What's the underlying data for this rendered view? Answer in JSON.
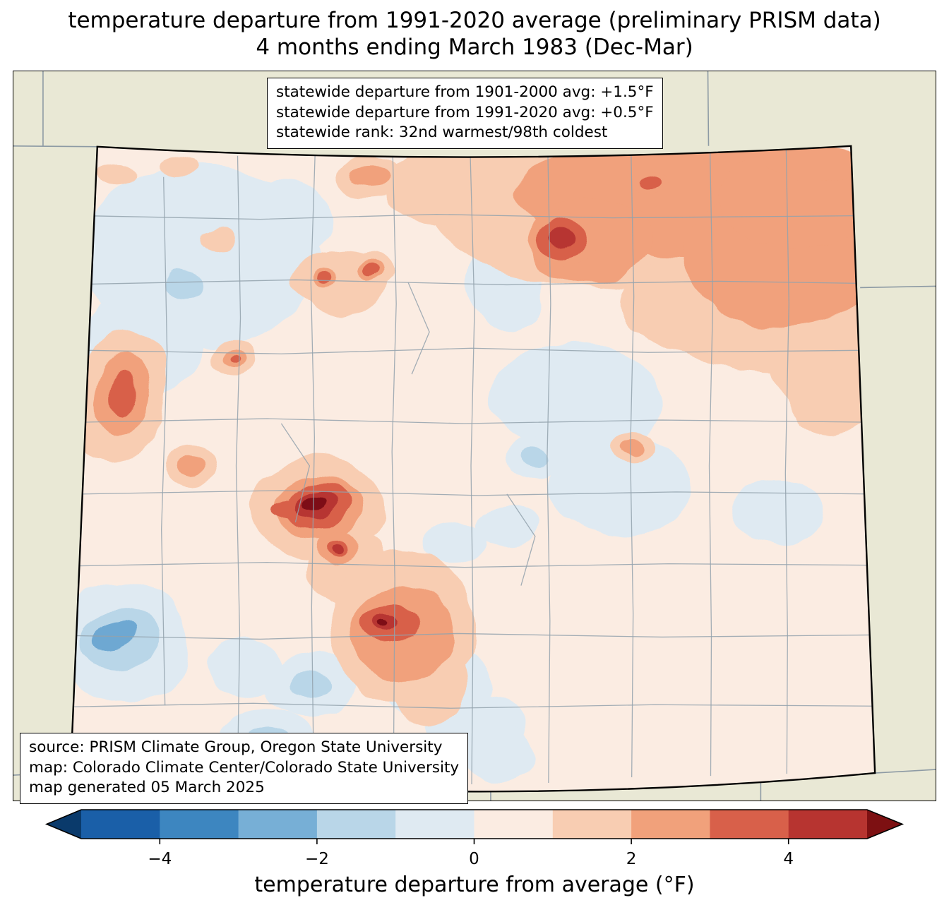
{
  "title": {
    "line1": "temperature departure from 1991-2020 average (preliminary PRISM data)",
    "line2": "4 months ending March 1983 (Dec-Mar)"
  },
  "stats_box": {
    "line1": "statewide departure from 1901-2000 avg: +1.5°F",
    "line2": "statewide departure from 1991-2020 avg: +0.5°F",
    "line3": "statewide rank: 32nd warmest/98th coldest"
  },
  "source_box": {
    "line1": "source: PRISM Climate Group, Oregon State University",
    "line2": "map: Colorado Climate Center/Colorado State University",
    "line3": "map generated 05 March 2025"
  },
  "map": {
    "background_color": "#e9e8d5",
    "state_border_color": "#000000",
    "county_border_color": "#93a2ad",
    "neighbor_border_color": "#8d9aa4"
  },
  "palette": {
    "pale_blue": "#dfeaf2",
    "light_blue": "#b9d6e8",
    "medium_blue": "#6ea8d2",
    "pale_warm": "#fbece2",
    "peach": "#f8cdb2",
    "salmon": "#f1a17b",
    "red": "#d8604a",
    "dark_red": "#b73430",
    "maroon": "#7d1012"
  },
  "colorbar": {
    "label": "temperature departure from average (°F)",
    "range": [
      -5,
      5
    ],
    "segment_colors": [
      "#1a5fa8",
      "#3d86c0",
      "#77afd6",
      "#b9d6e8",
      "#dfeaf2",
      "#fbece2",
      "#f8cdb2",
      "#f1a17b",
      "#d8604a",
      "#b73430"
    ],
    "arrow_left_color": "#0a3a6b",
    "arrow_right_color": "#7d1012",
    "ticks": [
      {
        "value": -4,
        "label": "−4"
      },
      {
        "value": -2,
        "label": "−2"
      },
      {
        "value": 0,
        "label": "0"
      },
      {
        "value": 2,
        "label": "2"
      },
      {
        "value": 4,
        "label": "4"
      }
    ]
  }
}
